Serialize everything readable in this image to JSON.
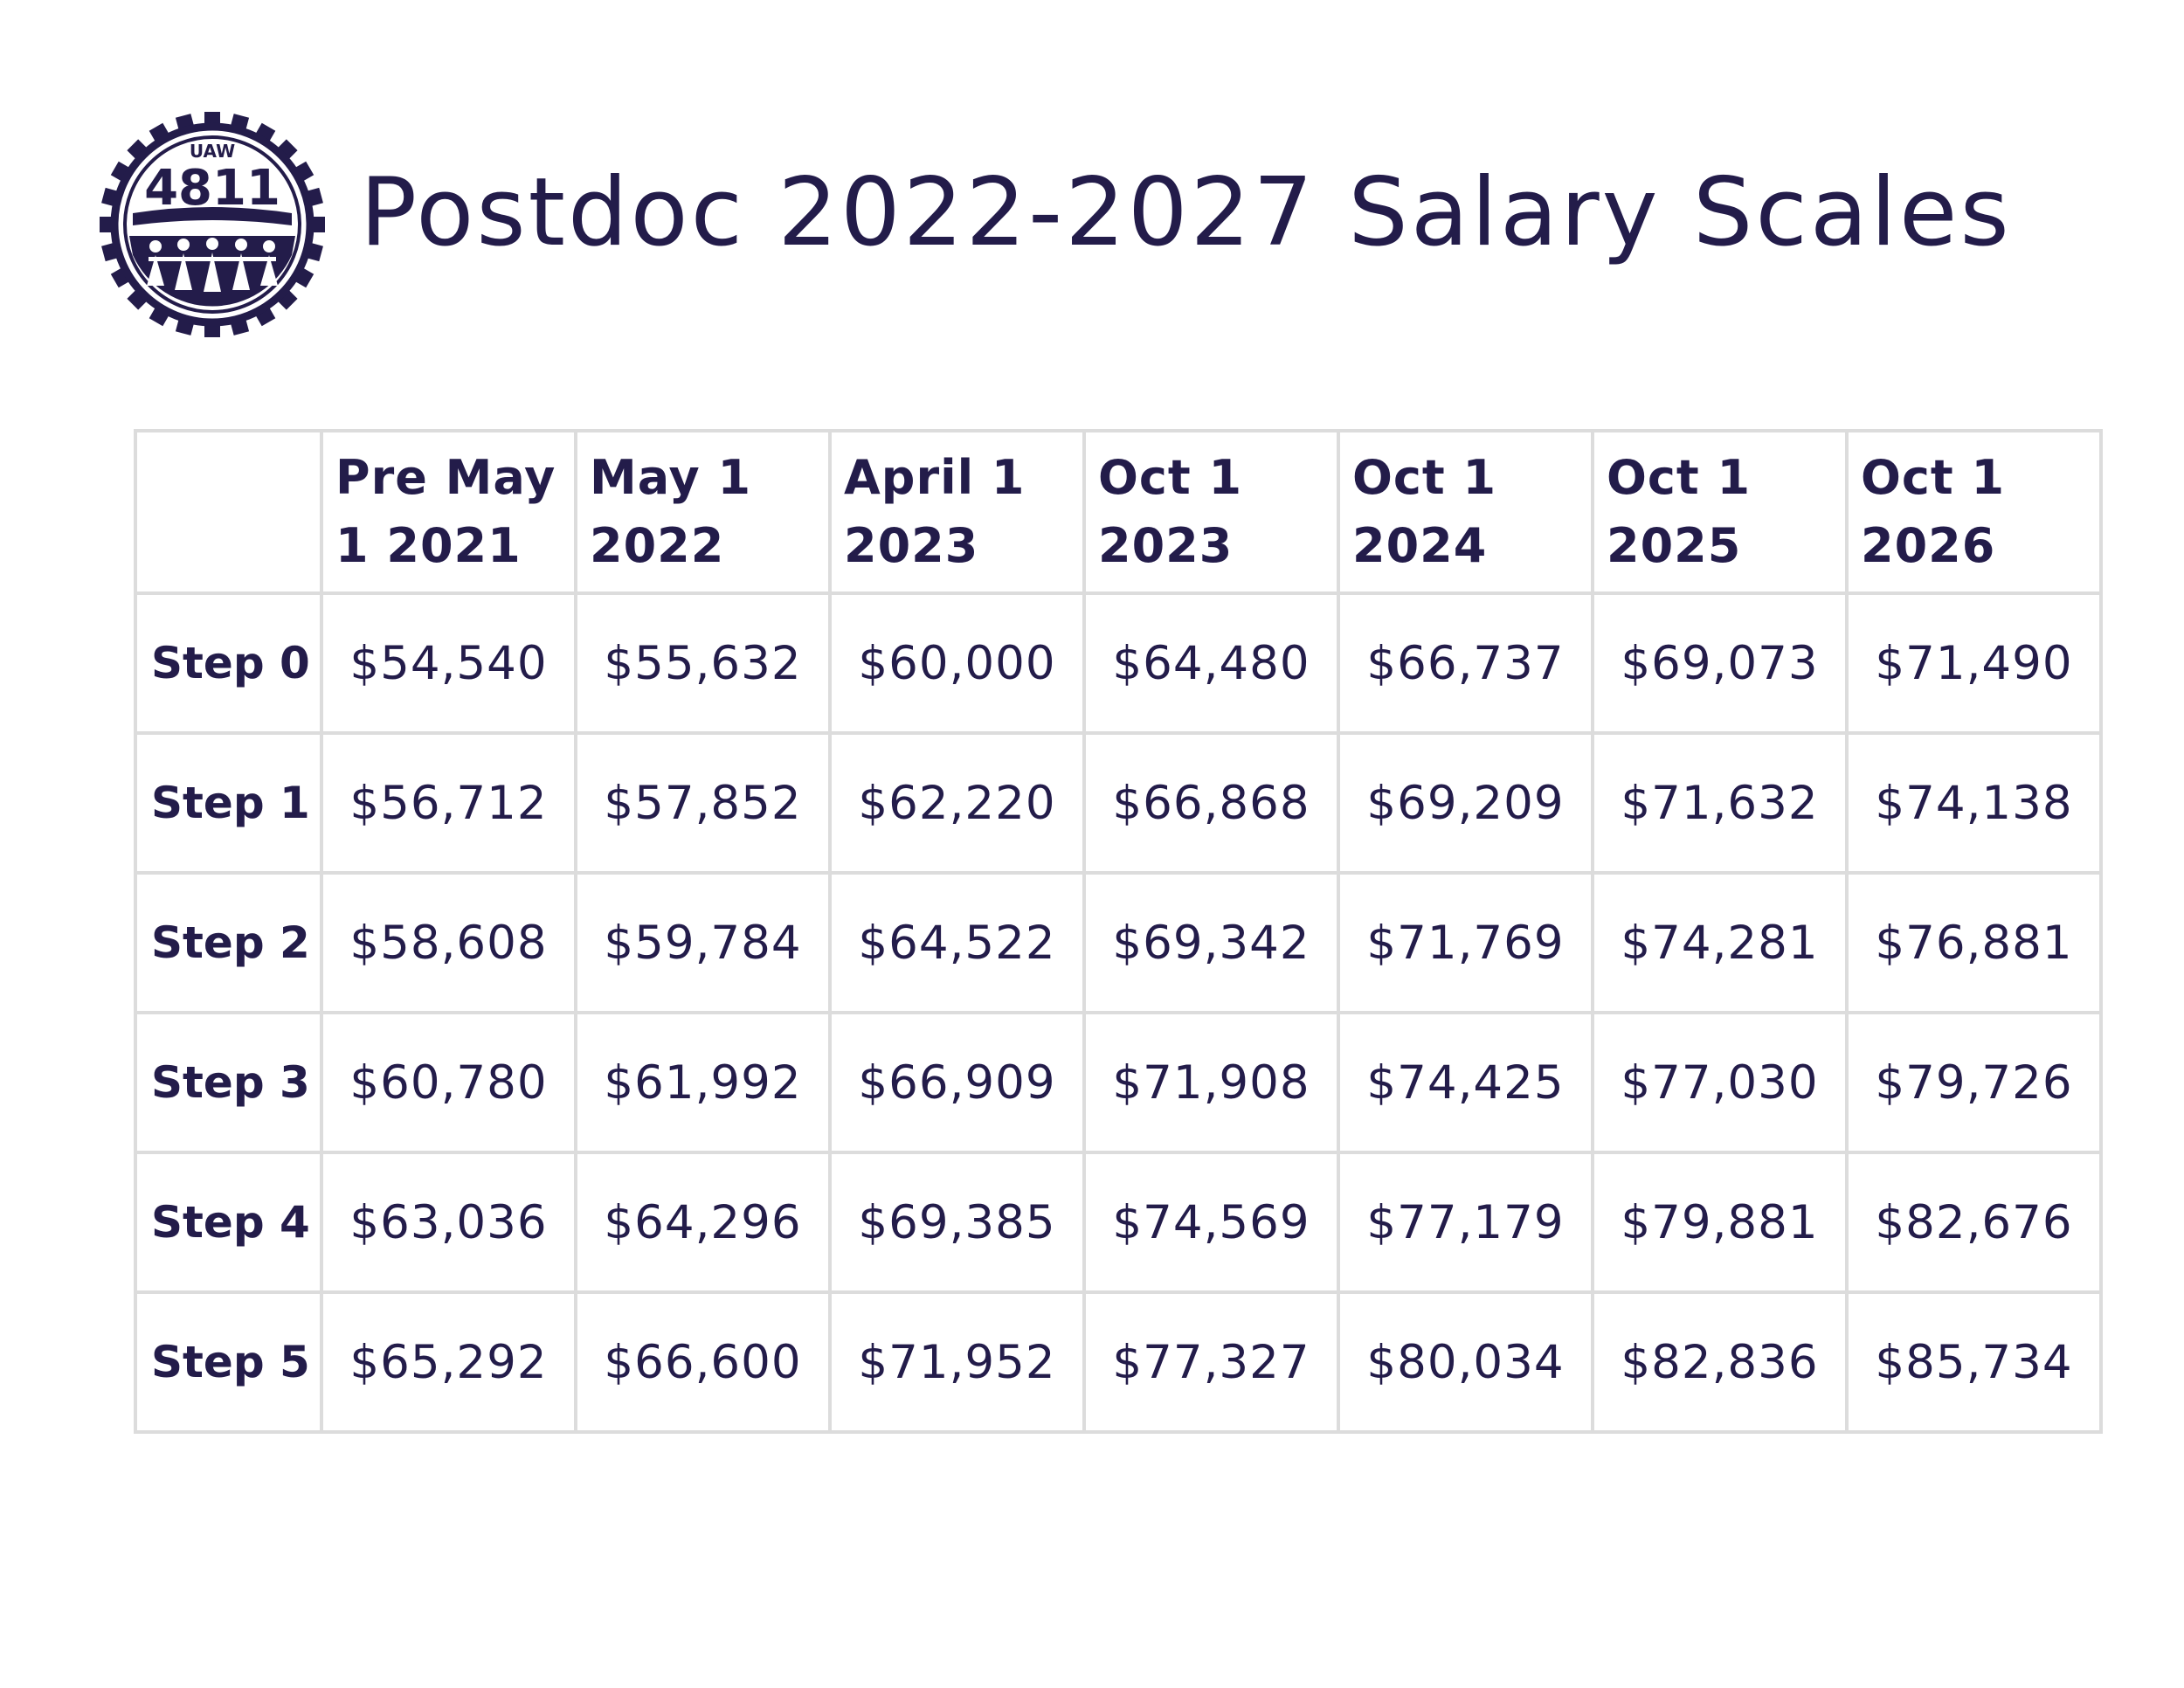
{
  "logo": {
    "top_text": "UAW",
    "number": "4811",
    "icon": "uaw-4811-gear-logo",
    "color": "#231c4a"
  },
  "title": "Postdoc 2022-2027 Salary Scales",
  "colors": {
    "text": "#231c4a",
    "grid": "#dcdcdc",
    "background": "#ffffff"
  },
  "table": {
    "corner": "",
    "headers": [
      "Pre May 1 2021",
      "May 1 2022",
      "April 1 2023",
      "Oct 1 2023",
      "Oct 1 2024",
      "Oct 1 2025",
      "Oct 1 2026"
    ],
    "rows": [
      {
        "label": "Step 0",
        "values": [
          "$54,540",
          "$55,632",
          "$60,000",
          "$64,480",
          "$66,737",
          "$69,073",
          "$71,490"
        ]
      },
      {
        "label": "Step 1",
        "values": [
          "$56,712",
          "$57,852",
          "$62,220",
          "$66,868",
          "$69,209",
          "$71,632",
          "$74,138"
        ]
      },
      {
        "label": "Step 2",
        "values": [
          "$58,608",
          "$59,784",
          "$64,522",
          "$69,342",
          "$71,769",
          "$74,281",
          "$76,881"
        ]
      },
      {
        "label": "Step 3",
        "values": [
          "$60,780",
          "$61,992",
          "$66,909",
          "$71,908",
          "$74,425",
          "$77,030",
          "$79,726"
        ]
      },
      {
        "label": "Step 4",
        "values": [
          "$63,036",
          "$64,296",
          "$69,385",
          "$74,569",
          "$77,179",
          "$79,881",
          "$82,676"
        ]
      },
      {
        "label": "Step 5",
        "values": [
          "$65,292",
          "$66,600",
          "$71,952",
          "$77,327",
          "$80,034",
          "$82,836",
          "$85,734"
        ]
      }
    ]
  }
}
